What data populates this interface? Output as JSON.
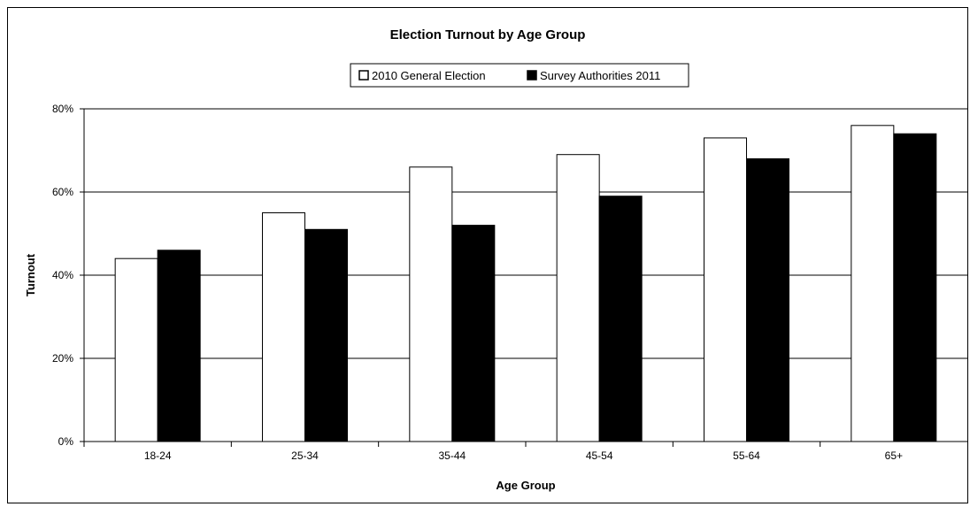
{
  "chart_data": {
    "type": "bar",
    "title": "Election Turnout by Age Group",
    "xlabel": "Age Group",
    "ylabel": "Turnout",
    "categories": [
      "18-24",
      "25-34",
      "35-44",
      "45-54",
      "55-64",
      "65+"
    ],
    "series": [
      {
        "name": "2010 General Election",
        "values": [
          44,
          55,
          66,
          69,
          73,
          76
        ],
        "color": "#ffffff"
      },
      {
        "name": "Survey Authorities 2011",
        "values": [
          46,
          51,
          52,
          59,
          68,
          74
        ],
        "color": "#000000"
      }
    ],
    "ylim": [
      0,
      80
    ],
    "yticks": [
      0,
      20,
      40,
      60,
      80
    ],
    "ytick_labels": [
      "0%",
      "20%",
      "40%",
      "60%",
      "80%"
    ],
    "grid": true,
    "legend_position": "top-center"
  }
}
